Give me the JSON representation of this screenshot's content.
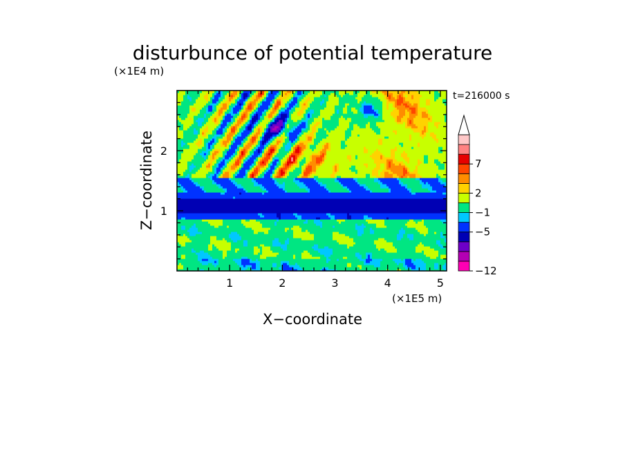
{
  "chart_data": {
    "type": "heatmap",
    "title": "disturbunce of potential temperature",
    "time_label": "t=216000 s",
    "xlabel": "X−coordinate",
    "ylabel": "Z−coordinate",
    "x_scale_note": "(×1E5 m)",
    "y_scale_note": "(×1E4 m)",
    "xlim": [
      0,
      5.12
    ],
    "ylim": [
      0,
      3.0
    ],
    "x_ticks": [
      {
        "value": 1,
        "label": "1"
      },
      {
        "value": 2,
        "label": "2"
      },
      {
        "value": 3,
        "label": "3"
      },
      {
        "value": 4,
        "label": "4"
      },
      {
        "value": 5,
        "label": "5"
      }
    ],
    "y_ticks": [
      {
        "value": 1,
        "label": "1"
      },
      {
        "value": 2,
        "label": "2"
      }
    ],
    "colorbar": {
      "extend_top": true,
      "bands": [
        {
          "color": "#ff00b4"
        },
        {
          "color": "#b400b4"
        },
        {
          "color": "#6e00c8"
        },
        {
          "color": "#0000b4"
        },
        {
          "color": "#0032ff"
        },
        {
          "color": "#00c8ff"
        },
        {
          "color": "#00e682"
        },
        {
          "color": "#c8ff00"
        },
        {
          "color": "#ffd200"
        },
        {
          "color": "#ff8c00"
        },
        {
          "color": "#ff4600"
        },
        {
          "color": "#e60000"
        },
        {
          "color": "#ff8282"
        },
        {
          "color": "#ffc8c8"
        }
      ],
      "tick_labels": [
        {
          "band_edge": 0,
          "label": "−12"
        },
        {
          "band_edge": 4,
          "label": "−5"
        },
        {
          "band_edge": 6,
          "label": "−1"
        },
        {
          "band_edge": 8,
          "label": "2"
        },
        {
          "band_edge": 11,
          "label": "7"
        }
      ]
    }
  }
}
